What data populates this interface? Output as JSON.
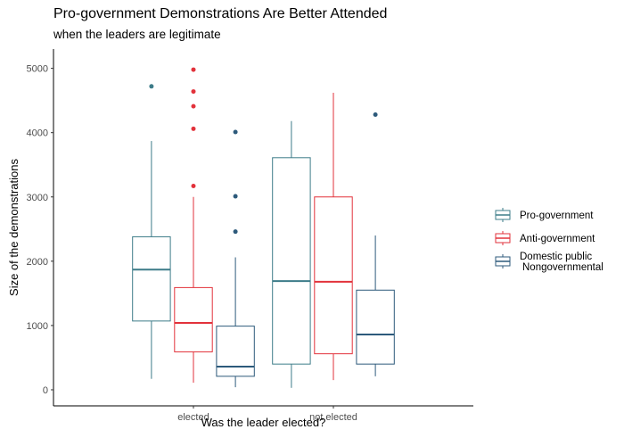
{
  "chart_data": {
    "type": "boxplot",
    "title": "Pro-government Demonstrations Are Better Attended",
    "subtitle": "when the leaders are legitimate",
    "xlabel": "Was the leader elected?",
    "ylabel": "Size of the demonstrations",
    "categories": [
      "elected",
      "not elected"
    ],
    "ylim": [
      -250,
      5300
    ],
    "yticks": [
      0,
      1000,
      2000,
      3000,
      4000,
      5000
    ],
    "grid": false,
    "legend_position": "right",
    "series": [
      {
        "name": "Pro-government",
        "color": "#3d7c89",
        "boxes": [
          {
            "min": 170,
            "q1": 1070,
            "median": 1870,
            "q3": 2380,
            "max": 3870,
            "outliers": [
              4720
            ]
          },
          {
            "min": 30,
            "q1": 400,
            "median": 1690,
            "q3": 3610,
            "max": 4180,
            "outliers": []
          }
        ]
      },
      {
        "name": "Anti-government",
        "color": "#e2323b",
        "boxes": [
          {
            "min": 110,
            "q1": 590,
            "median": 1040,
            "q3": 1590,
            "max": 3000,
            "outliers": [
              3170,
              4060,
              4410,
              4640,
              4980
            ]
          },
          {
            "min": 150,
            "q1": 560,
            "median": 1680,
            "q3": 3000,
            "max": 4620,
            "outliers": []
          }
        ]
      },
      {
        "name": "Domestic public\nNongovernmental",
        "color": "#2d5a7b",
        "boxes": [
          {
            "min": 40,
            "q1": 210,
            "median": 360,
            "q3": 990,
            "max": 2060,
            "outliers": [
              2460,
              3010,
              4010
            ]
          },
          {
            "min": 210,
            "q1": 400,
            "median": 860,
            "q3": 1550,
            "max": 2400,
            "outliers": [
              4280
            ]
          }
        ]
      }
    ]
  }
}
